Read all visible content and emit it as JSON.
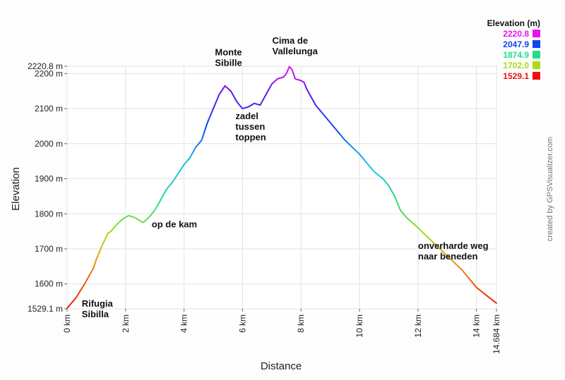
{
  "chart_data": {
    "type": "line",
    "xlabel": "Distance",
    "ylabel": "Elevation",
    "xlim": [
      0,
      14.684
    ],
    "ylim": [
      1529.1,
      2220.8
    ],
    "x_ticks": [
      {
        "value": 0,
        "label": "0 km"
      },
      {
        "value": 2,
        "label": "2 km"
      },
      {
        "value": 4,
        "label": "4 km"
      },
      {
        "value": 6,
        "label": "6 km"
      },
      {
        "value": 8,
        "label": "8 km"
      },
      {
        "value": 10,
        "label": "10 km"
      },
      {
        "value": 12,
        "label": "12 km"
      },
      {
        "value": 14,
        "label": "14 km"
      },
      {
        "value": 14.684,
        "label": "14.684 km"
      }
    ],
    "y_ticks": [
      {
        "value": 1529.1,
        "label": "1529.1 m"
      },
      {
        "value": 1600,
        "label": "1600 m"
      },
      {
        "value": 1700,
        "label": "1700 m"
      },
      {
        "value": 1800,
        "label": "1800 m"
      },
      {
        "value": 1900,
        "label": "1900 m"
      },
      {
        "value": 2000,
        "label": "2000 m"
      },
      {
        "value": 2100,
        "label": "2100 m"
      },
      {
        "value": 2200,
        "label": "2200 m"
      },
      {
        "value": 2220.8,
        "label": "2220.8 m"
      }
    ],
    "grid": true,
    "series": [
      {
        "x": [
          0,
          0.3,
          0.6,
          0.9,
          1.0,
          1.2,
          1.4,
          1.5,
          1.7,
          1.9,
          2.1,
          2.3,
          2.5,
          2.6,
          2.8,
          3.0,
          3.2,
          3.4,
          3.6,
          3.8,
          4.0,
          4.2,
          4.4,
          4.6,
          4.8,
          5.0,
          5.2,
          5.4,
          5.6,
          5.8,
          6.0,
          6.2,
          6.4,
          6.6,
          6.8,
          7.0,
          7.2,
          7.4,
          7.5,
          7.6,
          7.7,
          7.8,
          8.0,
          8.1,
          8.2,
          8.3,
          8.5,
          8.8,
          9.2,
          9.5,
          10.0,
          10.5,
          10.8,
          11.0,
          11.2,
          11.4,
          11.6,
          12.0,
          12.5,
          13.0,
          13.5,
          13.8,
          14.0,
          14.3,
          14.684
        ],
        "y": [
          1531,
          1560,
          1600,
          1645,
          1670,
          1710,
          1745,
          1750,
          1770,
          1785,
          1795,
          1790,
          1780,
          1775,
          1790,
          1810,
          1840,
          1870,
          1890,
          1915,
          1940,
          1960,
          1990,
          2010,
          2060,
          2100,
          2140,
          2165,
          2150,
          2120,
          2100,
          2105,
          2115,
          2110,
          2140,
          2170,
          2185,
          2190,
          2200,
          2220,
          2210,
          2185,
          2180,
          2175,
          2155,
          2140,
          2110,
          2080,
          2040,
          2010,
          1970,
          1920,
          1900,
          1880,
          1850,
          1810,
          1790,
          1760,
          1720,
          1680,
          1640,
          1610,
          1590,
          1570,
          1545
        ]
      }
    ],
    "annotations": [
      {
        "x": 0.5,
        "y": 1535,
        "lines": [
          "Rifugia",
          "Sibilla"
        ]
      },
      {
        "x": 2.7,
        "y": 1765,
        "lines": [
          "op de kam"
        ]
      },
      {
        "x": 5.3,
        "y": 2200,
        "lines": [
          "Monte",
          "Sibille"
        ]
      },
      {
        "x": 7.5,
        "y": 2220.8,
        "lines": [
          "Cima de",
          "Vallelunga"
        ]
      },
      {
        "x": 6.0,
        "y": 2070,
        "lines": [
          "zadel",
          "tussen",
          "toppen"
        ]
      },
      {
        "x": 12.0,
        "y": 1700,
        "lines": [
          "onverharde weg",
          "naar beneden"
        ]
      }
    ],
    "legend": {
      "title": "Elevation (m)",
      "position": "top-right",
      "entries": [
        {
          "value": "2220.8",
          "color": "#ee11ee"
        },
        {
          "value": "2047.9",
          "color": "#1144ee"
        },
        {
          "value": "1874.9",
          "color": "#22dd88"
        },
        {
          "value": "1702.0",
          "color": "#aadd11"
        },
        {
          "value": "1529.1",
          "color": "#ee1111"
        }
      ]
    },
    "gradient_stops": [
      {
        "at": 0.0,
        "color": "#ee1111"
      },
      {
        "at": 0.2,
        "color": "#ee9911"
      },
      {
        "at": 0.3,
        "color": "#aadd11"
      },
      {
        "at": 0.45,
        "color": "#22dd88"
      },
      {
        "at": 0.6,
        "color": "#22bbee"
      },
      {
        "at": 0.75,
        "color": "#1144ee"
      },
      {
        "at": 0.9,
        "color": "#6611ee"
      },
      {
        "at": 1.0,
        "color": "#ee11ee"
      }
    ],
    "credit": "created by GPSVisualizer.com"
  }
}
